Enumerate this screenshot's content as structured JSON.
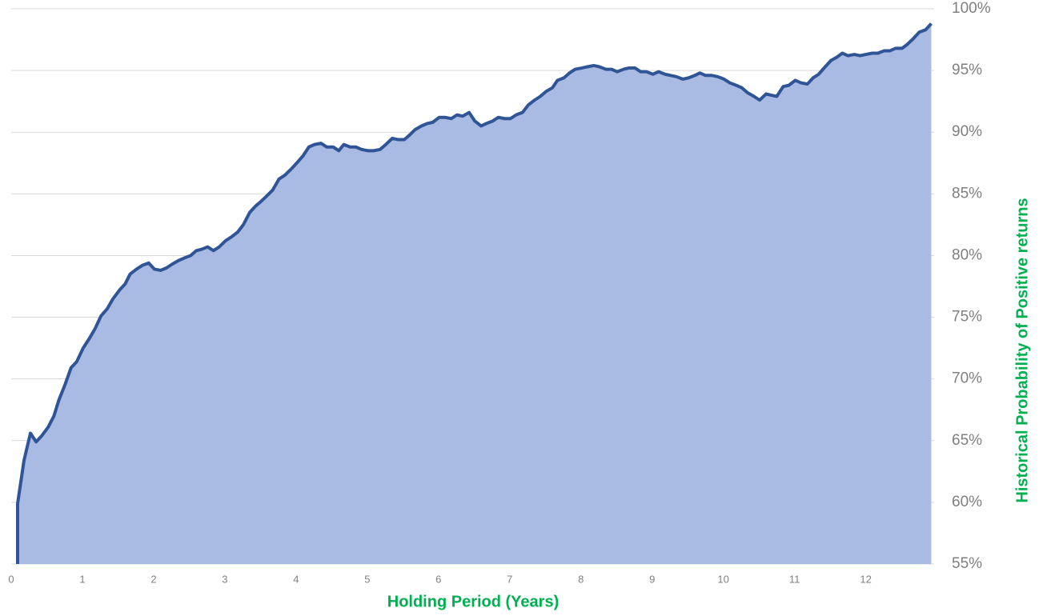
{
  "chart_data": {
    "type": "area",
    "x_label": "Holding Period (Years)",
    "y_label": "Historical Probability of Positive returns",
    "xlim": [
      0,
      12.96
    ],
    "ylim": [
      55,
      100
    ],
    "xticks": [
      0,
      1,
      2,
      3,
      4,
      5,
      6,
      7,
      8,
      9,
      10,
      11,
      12
    ],
    "yticks": [
      {
        "value": 55,
        "label": "55%"
      },
      {
        "value": 60,
        "label": "60%"
      },
      {
        "value": 65,
        "label": "65%"
      },
      {
        "value": 70,
        "label": "70%"
      },
      {
        "value": 75,
        "label": "75%"
      },
      {
        "value": 80,
        "label": "80%"
      },
      {
        "value": 85,
        "label": "85%"
      },
      {
        "value": 90,
        "label": "90%"
      },
      {
        "value": 95,
        "label": "95%"
      },
      {
        "value": 100,
        "label": "100%"
      }
    ],
    "y_axis_side": "right",
    "grid": true,
    "line_color": "#2f5597",
    "fill_color": "#a9bbe3",
    "x": [
      0.09,
      0.09,
      0.18,
      0.27,
      0.35,
      0.43,
      0.52,
      0.6,
      0.67,
      0.76,
      0.84,
      0.92,
      1.01,
      1.1,
      1.18,
      1.26,
      1.35,
      1.43,
      1.52,
      1.6,
      1.67,
      1.76,
      1.84,
      1.93,
      2.01,
      2.1,
      2.18,
      2.26,
      2.35,
      2.43,
      2.52,
      2.6,
      2.67,
      2.76,
      2.84,
      2.92,
      3.01,
      3.09,
      3.18,
      3.26,
      3.35,
      3.43,
      3.51,
      3.6,
      3.67,
      3.76,
      3.84,
      3.93,
      4.01,
      4.1,
      4.18,
      4.26,
      4.35,
      4.43,
      4.52,
      4.6,
      4.67,
      4.76,
      4.84,
      4.92,
      5.01,
      5.09,
      5.18,
      5.26,
      5.35,
      5.43,
      5.52,
      5.6,
      5.67,
      5.76,
      5.84,
      5.92,
      6.01,
      6.09,
      6.18,
      6.26,
      6.34,
      6.43,
      6.51,
      6.6,
      6.67,
      6.76,
      6.84,
      6.93,
      7.01,
      7.09,
      7.18,
      7.26,
      7.35,
      7.43,
      7.51,
      7.6,
      7.67,
      7.76,
      7.84,
      7.92,
      8.01,
      8.09,
      8.18,
      8.26,
      8.35,
      8.43,
      8.51,
      8.6,
      8.67,
      8.76,
      8.84,
      8.92,
      9.01,
      9.09,
      9.18,
      9.26,
      9.34,
      9.43,
      9.51,
      9.6,
      9.67,
      9.75,
      9.84,
      9.92,
      10.01,
      10.09,
      10.18,
      10.26,
      10.34,
      10.43,
      10.51,
      10.6,
      10.67,
      10.75,
      10.84,
      10.92,
      11.01,
      11.09,
      11.18,
      11.26,
      11.34,
      11.43,
      11.51,
      11.6,
      11.67,
      11.75,
      11.84,
      11.92,
      12.0,
      12.09,
      12.17,
      12.26,
      12.34,
      12.42,
      12.51,
      12.58,
      12.67,
      12.75,
      12.84,
      12.92
    ],
    "values": [
      55,
      59.9,
      63.4,
      65.6,
      64.9,
      65.4,
      66.1,
      67.0,
      68.3,
      69.6,
      70.9,
      71.4,
      72.5,
      73.3,
      74.1,
      75.1,
      75.7,
      76.5,
      77.2,
      77.7,
      78.5,
      78.9,
      79.2,
      79.4,
      78.9,
      78.8,
      79.0,
      79.3,
      79.6,
      79.8,
      80.0,
      80.4,
      80.5,
      80.7,
      80.4,
      80.7,
      81.2,
      81.5,
      81.9,
      82.5,
      83.5,
      84.0,
      84.4,
      84.9,
      85.3,
      86.2,
      86.5,
      87.0,
      87.5,
      88.1,
      88.8,
      89.0,
      89.1,
      88.8,
      88.8,
      88.5,
      89.0,
      88.8,
      88.8,
      88.6,
      88.5,
      88.5,
      88.6,
      89.0,
      89.5,
      89.4,
      89.4,
      89.8,
      90.2,
      90.5,
      90.7,
      90.8,
      91.2,
      91.2,
      91.1,
      91.4,
      91.3,
      91.6,
      90.9,
      90.5,
      90.7,
      90.9,
      91.2,
      91.1,
      91.1,
      91.4,
      91.6,
      92.2,
      92.6,
      92.9,
      93.3,
      93.6,
      94.2,
      94.4,
      94.8,
      95.1,
      95.2,
      95.3,
      95.4,
      95.3,
      95.1,
      95.1,
      94.9,
      95.1,
      95.2,
      95.2,
      94.9,
      94.9,
      94.7,
      94.9,
      94.7,
      94.6,
      94.5,
      94.3,
      94.4,
      94.6,
      94.8,
      94.6,
      94.6,
      94.5,
      94.3,
      94.0,
      93.8,
      93.6,
      93.2,
      92.9,
      92.6,
      93.1,
      93.0,
      92.9,
      93.7,
      93.8,
      94.2,
      94.0,
      93.9,
      94.4,
      94.7,
      95.3,
      95.8,
      96.1,
      96.4,
      96.2,
      96.3,
      96.2,
      96.3,
      96.4,
      96.4,
      96.6,
      96.6,
      96.8,
      96.8,
      97.1,
      97.6,
      98.1,
      98.3,
      98.8
    ]
  }
}
